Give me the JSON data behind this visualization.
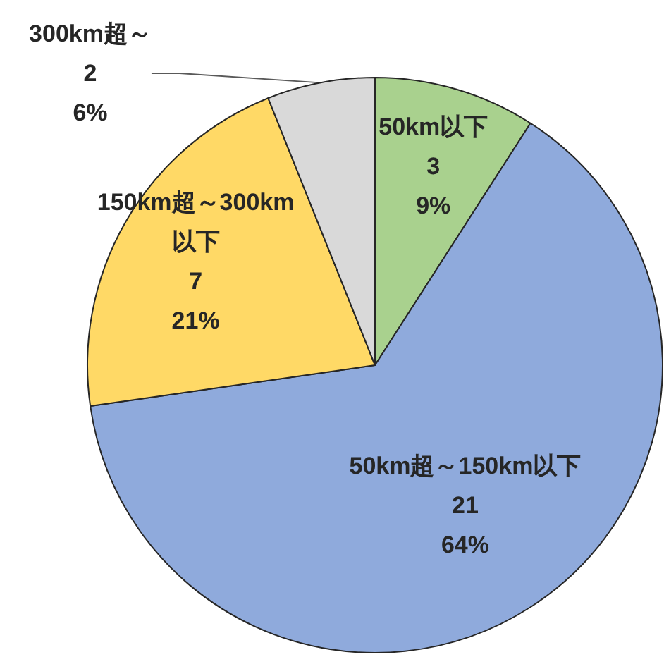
{
  "chart_data": {
    "type": "pie",
    "categories": [
      "50km以下",
      "50km超～150km以下",
      "150km超～300km以下",
      "300km超～"
    ],
    "values": [
      3,
      21,
      7,
      2
    ],
    "colors": [
      "#a9d18e",
      "#8faadc",
      "#ffd966",
      "#d9d9d9"
    ],
    "value_labels": [
      "3\n9%",
      "21\n64%",
      "7\n21%",
      "2\n6%"
    ]
  }
}
